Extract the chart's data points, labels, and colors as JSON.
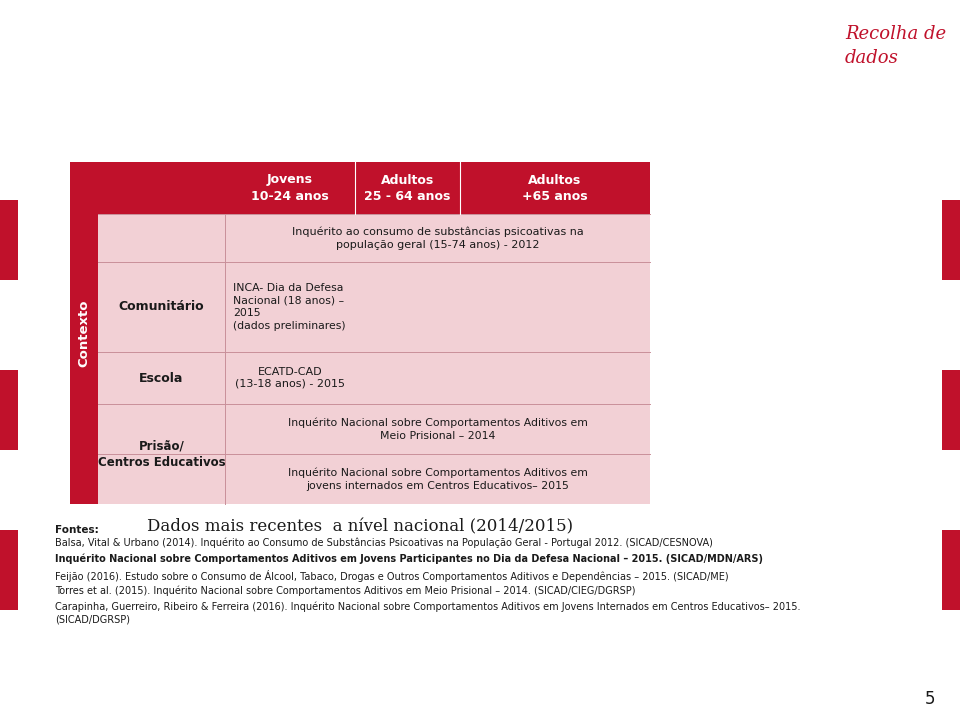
{
  "bg_color": "#ffffff",
  "red_color": "#c0112b",
  "light_pink": "#f2d0d5",
  "header_text_color": "#ffffff",
  "context_label": "Contexto",
  "col_headers": [
    "Jovens\n10-24 anos",
    "Adultos\n25 - 64 anos",
    "Adultos\n+65 anos"
  ],
  "row_labels": [
    "Comunitário",
    "Escola",
    "Prisão/\nCentros Educativos"
  ],
  "row0_span_text": "Inquérito ao consumo de substâncias psicoativas na\npopulação geral (15-74 anos) - 2012",
  "row1_col0": "INCA- Dia da Defesa\nNacional (18 anos) –\n2015\n(dados preliminares)",
  "row2_col0": "ECATD-CAD\n(13-18 anos) - 2015",
  "row3_col0": "Inquérito Nacional sobre Comportamentos Aditivos em\nMeio Prisional – 2014",
  "row3_col0b": "Inquérito Nacional sobre Comportamentos Aditivos em\njovens internados em Centros Educativos– 2015",
  "subtitle": "Dados mais recentes  a nível nacional (2014/2015)",
  "fontes_title": "Fontes:",
  "fontes_lines": [
    "Balsa, Vital & Urbano (2014). Inquérito ao Consumo de Substâncias Psicoativas na População Geral - Portugal 2012. (SICAD/CESNOVA)",
    "Inquérito Nacional sobre Comportamentos Aditivos em Jovens Participantes no Dia da Defesa Nacional – 2015. (SICAD/MDN/ARS)",
    "Feijão (2016). Estudo sobre o Consumo de Álcool, Tabaco, Drogas e Outros Comportamentos Aditivos e Dependências – 2015. (SICAD/ME)",
    "Torres et al. (2015). Inquérito Nacional sobre Comportamentos Aditivos em Meio Prisional – 2014. (SICAD/CIEG/DGRSP)",
    "Carapinha, Guerreiro, Ribeiro & Ferreira (2016). Inquérito Nacional sobre Comportamentos Aditivos em Jovens Internados em Centros Educativos– 2015.\n(SICAD/DGRSP)"
  ],
  "page_number": "5",
  "recolha_text": "Recolha de\ndados"
}
